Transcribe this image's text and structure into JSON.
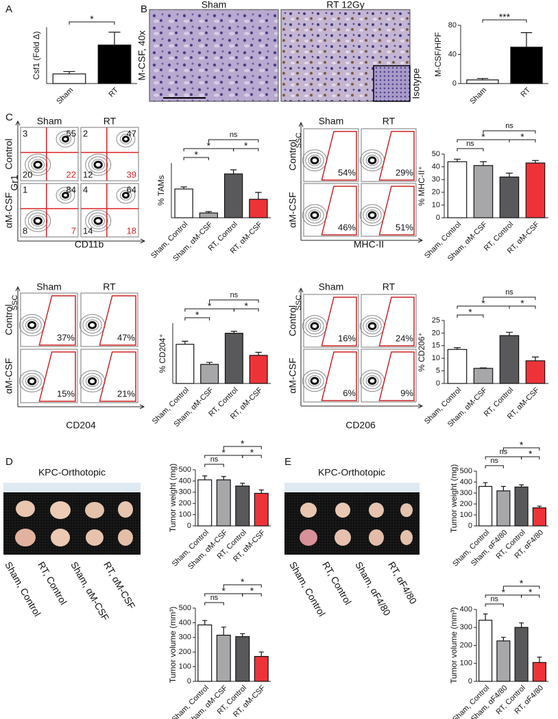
{
  "panels": [
    "A",
    "B",
    "C",
    "D",
    "E"
  ],
  "micrographs": {
    "columns": [
      "Sham",
      "RT 12Gy"
    ],
    "row_label": "M-CSF, 40x",
    "inset_label": "Isotype"
  },
  "flow": [
    {
      "columns": [
        "Sham",
        "RT"
      ],
      "rows": [
        "Control",
        "αM-CSF"
      ],
      "y_label": "Gr1",
      "x_label": "CD11b",
      "quadrants": [
        [
          [
            3,
            55,
            20,
            22
          ],
          [
            2,
            47,
            12,
            39
          ]
        ],
        [
          [
            1,
            84,
            8,
            7
          ],
          [
            4,
            64,
            14,
            18
          ]
        ]
      ]
    },
    {
      "columns": [
        "Sham",
        "RT"
      ],
      "rows": [
        "Control",
        "αM-CSF"
      ],
      "y_label": "SSC",
      "x_label": "MHC-II",
      "gates": [
        [
          "54%",
          "29%"
        ],
        [
          "46%",
          "51%"
        ]
      ]
    },
    {
      "columns": [
        "Sham",
        "RT"
      ],
      "rows": [
        "Control",
        "αM-CSF"
      ],
      "y_label": "SSC",
      "x_label": "CD204",
      "gates": [
        [
          "37%",
          "47%"
        ],
        [
          "15%",
          "21%"
        ]
      ]
    },
    {
      "columns": [
        "Sham",
        "RT"
      ],
      "rows": [
        "Control",
        "αM-CSF"
      ],
      "y_label": "SSC",
      "x_label": "CD206",
      "gates": [
        [
          "16%",
          "24%"
        ],
        [
          "6%",
          "9%"
        ]
      ]
    }
  ],
  "photos": [
    {
      "title": "KPC-Orthotopic",
      "labels": [
        "Sham, Control",
        "RT, Control",
        "Sham, αM-CSF",
        "RT, αM-CSF"
      ]
    },
    {
      "title": "KPC-Orthotopic",
      "labels": [
        "Sham, Control",
        "RT, Control",
        "Sham, αF4/80",
        "RT, αF4/80"
      ]
    }
  ],
  "chart_data": [
    {
      "type": "bar",
      "y_label": "Csf1 (Fold Δ)",
      "categories": [
        "Sham",
        "RT"
      ],
      "values": [
        1.2,
        4.8
      ],
      "errors": [
        0.3,
        1.6
      ],
      "colors": [
        "#ffffff",
        "#000000"
      ],
      "ylim": [
        0,
        7
      ],
      "annotations": [
        "*"
      ]
    },
    {
      "type": "bar",
      "y_label": "M-CSF/HPF",
      "categories": [
        "Sham",
        "RT"
      ],
      "values": [
        5,
        50
      ],
      "errors": [
        2,
        20
      ],
      "colors": [
        "#ffffff",
        "#000000"
      ],
      "ylim": [
        0,
        80
      ],
      "yticks": [
        0,
        40,
        80
      ],
      "annotations": [
        "***"
      ]
    },
    {
      "type": "bar",
      "y_label": "% TAMs",
      "categories": [
        "Sham, Control",
        "Sham, αM-CSF",
        "RT, Control",
        "RT, αM-CSF"
      ],
      "values": [
        21,
        3.5,
        32,
        13.5
      ],
      "errors": [
        1.5,
        1,
        3,
        5
      ],
      "colors": [
        "#ffffff",
        "#a7a7aa",
        "#59595b",
        "#ee3338"
      ],
      "ylim": [
        0,
        40
      ],
      "annotations": [
        "*",
        "*",
        "*",
        "ns"
      ]
    },
    {
      "type": "bar",
      "y_label": "% MHC-II⁺",
      "categories": [
        "Sham, Control",
        "Sham, αM-CSF",
        "RT, Control",
        "RT, αM-CSF"
      ],
      "values": [
        44,
        41,
        32,
        43
      ],
      "errors": [
        2,
        3,
        3,
        2
      ],
      "colors": [
        "#ffffff",
        "#a7a7aa",
        "#59595b",
        "#ee3338"
      ],
      "ylim": [
        0,
        50
      ],
      "yticks": [
        0,
        10,
        20,
        30,
        40,
        50
      ],
      "annotations": [
        "ns",
        "*",
        "*",
        "ns"
      ]
    },
    {
      "type": "bar",
      "y_label": "% CD204⁺",
      "categories": [
        "Sham, Control",
        "Sham, αM-CSF",
        "RT, Control",
        "RT, αM-CSF"
      ],
      "values": [
        39,
        19,
        50,
        28
      ],
      "errors": [
        3,
        2,
        2,
        3
      ],
      "colors": [
        "#ffffff",
        "#a7a7aa",
        "#59595b",
        "#ee3338"
      ],
      "ylim": [
        0,
        60
      ],
      "annotations": [
        "*",
        "*",
        "*",
        "ns"
      ]
    },
    {
      "type": "bar",
      "y_label": "% CD206⁺",
      "categories": [
        "Sham, Control",
        "Sham, αM-CSF",
        "RT, Control",
        "RT, αM-CSF"
      ],
      "values": [
        13.5,
        6,
        19,
        9
      ],
      "errors": [
        0.7,
        0.2,
        1.3,
        1.5
      ],
      "colors": [
        "#ffffff",
        "#a7a7aa",
        "#59595b",
        "#ee3338"
      ],
      "ylim": [
        0,
        25
      ],
      "yticks": [
        0,
        5,
        10,
        15,
        20,
        25
      ],
      "annotations": [
        "*",
        "*",
        "*",
        "ns"
      ]
    },
    {
      "type": "bar",
      "y_label": "Tumor weight (mg)",
      "categories": [
        "Sham, Control",
        "Sham, αM-CSF",
        "RT, Control",
        "RT, αM-CSF"
      ],
      "values": [
        410,
        410,
        355,
        290
      ],
      "errors": [
        35,
        30,
        25,
        30
      ],
      "colors": [
        "#ffffff",
        "#a7a7aa",
        "#59595b",
        "#ee3338"
      ],
      "ylim": [
        0,
        500
      ],
      "yticks": [
        0,
        100,
        200,
        300,
        400,
        500
      ],
      "annotations": [
        "ns",
        "*",
        "*",
        "*"
      ]
    },
    {
      "type": "bar",
      "y_label": "Tumor volume (mm³)",
      "categories": [
        "Sham, Control",
        "Sham, αM-CSF",
        "RT, Control",
        "RT, αM-CSF"
      ],
      "values": [
        385,
        315,
        305,
        170
      ],
      "errors": [
        30,
        55,
        20,
        30
      ],
      "colors": [
        "#ffffff",
        "#a7a7aa",
        "#59595b",
        "#ee3338"
      ],
      "ylim": [
        0,
        500
      ],
      "yticks": [
        0,
        100,
        200,
        300,
        400,
        500
      ],
      "annotations": [
        "ns",
        "*",
        "*",
        "*"
      ]
    },
    {
      "type": "bar",
      "y_label": "Tumor weight (mg)",
      "categories": [
        "Sham, Control",
        "Sham, αF4/80",
        "RT, Control",
        "RT, αF4/80"
      ],
      "values": [
        360,
        320,
        355,
        165
      ],
      "errors": [
        35,
        40,
        20,
        15
      ],
      "colors": [
        "#ffffff",
        "#a7a7aa",
        "#59595b",
        "#ee3338"
      ],
      "ylim": [
        0,
        500
      ],
      "yticks": [
        0,
        100,
        200,
        300,
        400,
        500
      ],
      "annotations": [
        "ns",
        "ns",
        "*",
        "*"
      ]
    },
    {
      "type": "bar",
      "y_label": "Tumor volume (mm³)",
      "categories": [
        "Sham, Control",
        "Sham, αF4/80",
        "RT, Control",
        "RT, αF4/80"
      ],
      "values": [
        340,
        225,
        300,
        105
      ],
      "errors": [
        35,
        20,
        25,
        30
      ],
      "colors": [
        "#ffffff",
        "#a7a7aa",
        "#59595b",
        "#ee3338"
      ],
      "ylim": [
        0,
        400
      ],
      "yticks": [
        0,
        100,
        200,
        300,
        400
      ],
      "annotations": [
        "ns",
        "*",
        "*",
        "*"
      ]
    }
  ]
}
